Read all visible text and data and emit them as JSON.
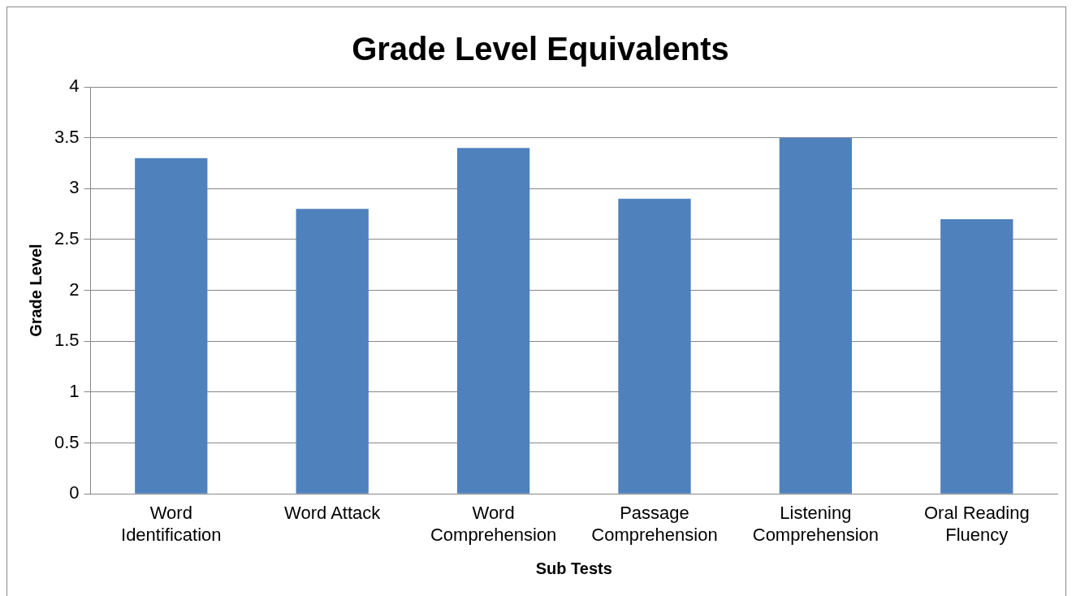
{
  "chart_data": {
    "type": "bar",
    "title": "Grade Level Equivalents",
    "xlabel": "Sub Tests",
    "ylabel": "Grade Level",
    "categories": [
      "Word Identification",
      "Word Attack",
      "Word Comprehension",
      "Passage Comprehension",
      "Listening Comprehension",
      "Oral Reading Fluency"
    ],
    "values": [
      3.3,
      2.8,
      3.4,
      2.9,
      3.5,
      2.7
    ],
    "color": "#4f81bd",
    "ylim": [
      0,
      4
    ],
    "yticks": [
      0,
      0.5,
      1,
      1.5,
      2,
      2.5,
      3,
      3.5,
      4
    ],
    "grid": "y",
    "legend": false
  }
}
